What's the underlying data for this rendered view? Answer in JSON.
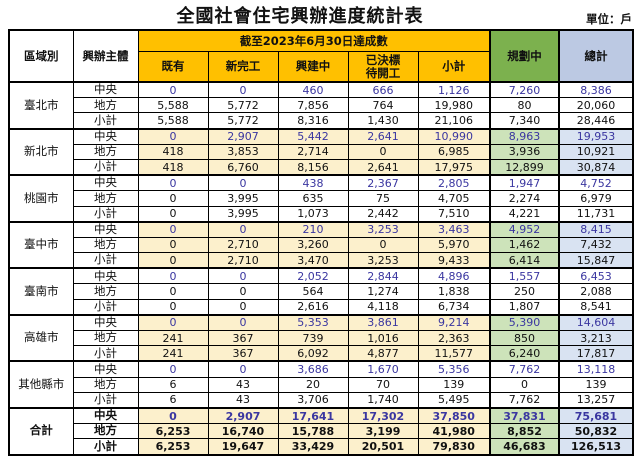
{
  "title": "全國社會住宅興辦進度統計表",
  "unit_label": "單位：戶",
  "colors": {
    "header_orange": "#FFC000",
    "header_green": "#7CB14E",
    "header_blue": "#BCC9E3",
    "cell_cream": "#FCF0CC",
    "cell_green": "#CDE3BA",
    "cell_blue": "#D9E3F2",
    "central_row_text_blue": "#3A36A0",
    "border_black": "#000000"
  },
  "table": {
    "headers": {
      "region": "區域別",
      "entity": "興辦主體",
      "achieved_group": "截至2023年6月30日達成數",
      "achieved_cols": [
        "既有",
        "新完工",
        "興建中",
        "已決標\n待開工",
        "小計"
      ],
      "planning": "規劃中",
      "total": "總計"
    },
    "column_names": [
      "existing",
      "newly-completed",
      "under-construction",
      "awarded-pending-start",
      "subtotal",
      "planning",
      "grand-total"
    ],
    "regions": [
      {
        "name": "臺北市",
        "highlight": false,
        "bold": false,
        "rows": [
          {
            "label": "中央",
            "blue": true,
            "values": [
              "0",
              "0",
              "460",
              "666",
              "1,126",
              "7,260",
              "8,386"
            ]
          },
          {
            "label": "地方",
            "blue": false,
            "values": [
              "5,588",
              "5,772",
              "7,856",
              "764",
              "19,980",
              "80",
              "20,060"
            ]
          },
          {
            "label": "小計",
            "blue": false,
            "values": [
              "5,588",
              "5,772",
              "8,316",
              "1,430",
              "21,106",
              "7,340",
              "28,446"
            ]
          }
        ]
      },
      {
        "name": "新北市",
        "highlight": true,
        "bold": false,
        "rows": [
          {
            "label": "中央",
            "blue": true,
            "values": [
              "0",
              "2,907",
              "5,442",
              "2,641",
              "10,990",
              "8,963",
              "19,953"
            ]
          },
          {
            "label": "地方",
            "blue": false,
            "values": [
              "418",
              "3,853",
              "2,714",
              "0",
              "6,985",
              "3,936",
              "10,921"
            ]
          },
          {
            "label": "小計",
            "blue": false,
            "values": [
              "418",
              "6,760",
              "8,156",
              "2,641",
              "17,975",
              "12,899",
              "30,874"
            ]
          }
        ]
      },
      {
        "name": "桃園市",
        "highlight": false,
        "bold": false,
        "rows": [
          {
            "label": "中央",
            "blue": true,
            "values": [
              "0",
              "0",
              "438",
              "2,367",
              "2,805",
              "1,947",
              "4,752"
            ]
          },
          {
            "label": "地方",
            "blue": false,
            "values": [
              "0",
              "3,995",
              "635",
              "75",
              "4,705",
              "2,274",
              "6,979"
            ]
          },
          {
            "label": "小計",
            "blue": false,
            "values": [
              "0",
              "3,995",
              "1,073",
              "2,442",
              "7,510",
              "4,221",
              "11,731"
            ]
          }
        ]
      },
      {
        "name": "臺中市",
        "highlight": true,
        "bold": false,
        "rows": [
          {
            "label": "中央",
            "blue": true,
            "values": [
              "0",
              "0",
              "210",
              "3,253",
              "3,463",
              "4,952",
              "8,415"
            ]
          },
          {
            "label": "地方",
            "blue": false,
            "values": [
              "0",
              "2,710",
              "3,260",
              "0",
              "5,970",
              "1,462",
              "7,432"
            ]
          },
          {
            "label": "小計",
            "blue": false,
            "values": [
              "0",
              "2,710",
              "3,470",
              "3,253",
              "9,433",
              "6,414",
              "15,847"
            ]
          }
        ]
      },
      {
        "name": "臺南市",
        "highlight": false,
        "bold": false,
        "rows": [
          {
            "label": "中央",
            "blue": true,
            "values": [
              "0",
              "0",
              "2,052",
              "2,844",
              "4,896",
              "1,557",
              "6,453"
            ]
          },
          {
            "label": "地方",
            "blue": false,
            "values": [
              "0",
              "0",
              "564",
              "1,274",
              "1,838",
              "250",
              "2,088"
            ]
          },
          {
            "label": "小計",
            "blue": false,
            "values": [
              "0",
              "0",
              "2,616",
              "4,118",
              "6,734",
              "1,807",
              "8,541"
            ]
          }
        ]
      },
      {
        "name": "高雄市",
        "highlight": true,
        "bold": false,
        "rows": [
          {
            "label": "中央",
            "blue": true,
            "values": [
              "0",
              "0",
              "5,353",
              "3,861",
              "9,214",
              "5,390",
              "14,604"
            ]
          },
          {
            "label": "地方",
            "blue": false,
            "values": [
              "241",
              "367",
              "739",
              "1,016",
              "2,363",
              "850",
              "3,213"
            ]
          },
          {
            "label": "小計",
            "blue": false,
            "values": [
              "241",
              "367",
              "6,092",
              "4,877",
              "11,577",
              "6,240",
              "17,817"
            ]
          }
        ]
      },
      {
        "name": "其他縣市",
        "highlight": false,
        "bold": false,
        "rows": [
          {
            "label": "中央",
            "blue": true,
            "values": [
              "0",
              "0",
              "3,686",
              "1,670",
              "5,356",
              "7,762",
              "13,118"
            ]
          },
          {
            "label": "地方",
            "blue": false,
            "values": [
              "6",
              "43",
              "20",
              "70",
              "139",
              "0",
              "139"
            ]
          },
          {
            "label": "小計",
            "blue": false,
            "values": [
              "6",
              "43",
              "3,706",
              "1,740",
              "5,495",
              "7,762",
              "13,257"
            ]
          }
        ]
      },
      {
        "name": "合計",
        "highlight": true,
        "bold": true,
        "rows": [
          {
            "label": "中央",
            "blue": true,
            "values": [
              "0",
              "2,907",
              "17,641",
              "17,302",
              "37,850",
              "37,831",
              "75,681"
            ]
          },
          {
            "label": "地方",
            "blue": false,
            "values": [
              "6,253",
              "16,740",
              "15,788",
              "3,199",
              "41,980",
              "8,852",
              "50,832"
            ]
          },
          {
            "label": "小計",
            "blue": false,
            "values": [
              "6,253",
              "19,647",
              "33,429",
              "20,501",
              "79,830",
              "46,683",
              "126,513"
            ]
          }
        ]
      }
    ]
  }
}
